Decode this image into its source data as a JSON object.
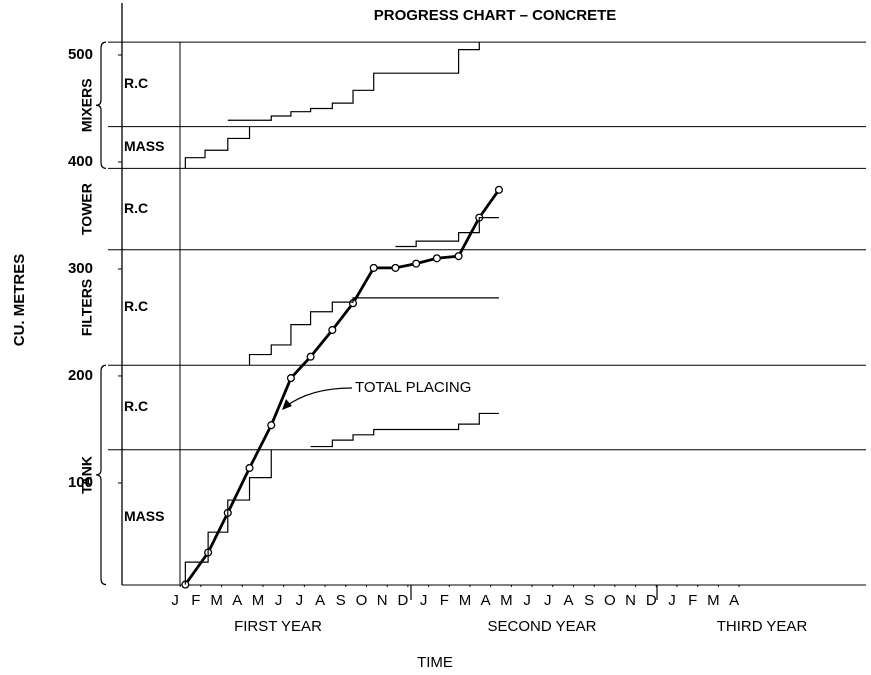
{
  "chart_data": {
    "type": "line",
    "title": "PROGRESS CHART – CONCRETE",
    "ylabel": "CU. METRES",
    "xlabel": "TIME",
    "annotation": "TOTAL PLACING",
    "years": [
      "FIRST YEAR",
      "SECOND YEAR",
      "THIRD YEAR"
    ],
    "ylim": [
      5,
      550
    ],
    "yticks": [
      100,
      200,
      300,
      400,
      500
    ],
    "xlim": [
      -0.25,
      33
    ],
    "xticks": [
      {
        "value": 0,
        "label": "J"
      },
      {
        "value": 1,
        "label": "F"
      },
      {
        "value": 2,
        "label": "M"
      },
      {
        "value": 3,
        "label": "A"
      },
      {
        "value": 4,
        "label": "M"
      },
      {
        "value": 5,
        "label": "J"
      },
      {
        "value": 6,
        "label": "J"
      },
      {
        "value": 7,
        "label": "A"
      },
      {
        "value": 8,
        "label": "S"
      },
      {
        "value": 9,
        "label": "O"
      },
      {
        "value": 10,
        "label": "N"
      },
      {
        "value": 11,
        "label": "D"
      },
      {
        "value": 12,
        "label": "J"
      },
      {
        "value": 13,
        "label": "F"
      },
      {
        "value": 14,
        "label": "M"
      },
      {
        "value": 15,
        "label": "A"
      },
      {
        "value": 16,
        "label": "M"
      },
      {
        "value": 17,
        "label": "J"
      },
      {
        "value": 18,
        "label": "J"
      },
      {
        "value": 19,
        "label": "A"
      },
      {
        "value": 20,
        "label": "S"
      },
      {
        "value": 21,
        "label": "O"
      },
      {
        "value": 22,
        "label": "N"
      },
      {
        "value": 23,
        "label": "D"
      },
      {
        "value": 24,
        "label": "J"
      },
      {
        "value": 25,
        "label": "F"
      },
      {
        "value": 26,
        "label": "M"
      },
      {
        "value": 27,
        "label": "A"
      }
    ],
    "parts": [
      {
        "label": "R.C",
        "range": [
          433,
          512
        ]
      },
      {
        "label": "MASS",
        "range": [
          394,
          433
        ]
      },
      {
        "label": "R.C",
        "range": [
          318,
          394
        ]
      },
      {
        "label": "R.C",
        "range": [
          210,
          318
        ]
      },
      {
        "label": "R.C",
        "range": [
          131,
          210
        ]
      },
      {
        "label": "MASS",
        "range": [
          5,
          131
        ]
      }
    ],
    "groups": [
      {
        "name": "MIXERS",
        "range": [
          394,
          512
        ],
        "parts": 2
      },
      {
        "name": "TOWER",
        "range": [
          318,
          394
        ],
        "parts": 1
      },
      {
        "name": "FILTERS",
        "range": [
          210,
          318
        ],
        "parts": 1
      },
      {
        "name": "TANK",
        "range": [
          5,
          210
        ],
        "parts": 2
      }
    ],
    "series": [
      {
        "name": "TOTAL PLACING",
        "color": "#000",
        "style": "line",
        "marker": "circle",
        "x": [
          0.25,
          1.35,
          2.3,
          3.35,
          4.4,
          5.35,
          6.3,
          7.35,
          8.35,
          9.35,
          10.4,
          11.4,
          12.4,
          13.45,
          14.45,
          15.4
        ],
        "values": [
          5,
          35,
          72,
          114,
          154,
          198,
          218,
          243,
          268,
          301,
          301,
          305,
          310,
          312,
          348,
          374
        ]
      },
      {
        "color": "#000",
        "style": "step",
        "x": [
          0.25,
          0.25,
          1.35,
          2.3,
          3.35,
          4.4
        ],
        "values": [
          5,
          26,
          54,
          84,
          105,
          131
        ]
      },
      {
        "color": "#000",
        "style": "step",
        "x": [
          6.3,
          7.35,
          8.35,
          9.35,
          13.45,
          14.45,
          15.4
        ],
        "values": [
          134,
          140,
          145,
          150,
          155,
          165,
          165
        ]
      },
      {
        "color": "#000",
        "style": "step",
        "x": [
          3.35,
          3.35,
          4.4,
          5.35,
          6.3,
          7.35,
          8.35,
          15.4
        ],
        "values": [
          210,
          220,
          229,
          248,
          260,
          269,
          273,
          273
        ]
      },
      {
        "color": "#000",
        "style": "step",
        "x": [
          10.4,
          11.4,
          13.45,
          14.45,
          15.4
        ],
        "values": [
          321,
          326,
          334,
          348,
          348
        ]
      },
      {
        "color": "#000",
        "style": "step",
        "x": [
          0.25,
          0.25,
          1.2,
          2.3,
          3.35
        ],
        "values": [
          394,
          404,
          411,
          422,
          433
        ]
      },
      {
        "color": "#000",
        "style": "step",
        "x": [
          2.3,
          4.4,
          5.35,
          6.3,
          7.35,
          8.35,
          9.35,
          13.45,
          14.45
        ],
        "values": [
          439,
          443,
          447,
          450,
          455,
          467,
          483,
          505,
          512
        ]
      }
    ]
  }
}
